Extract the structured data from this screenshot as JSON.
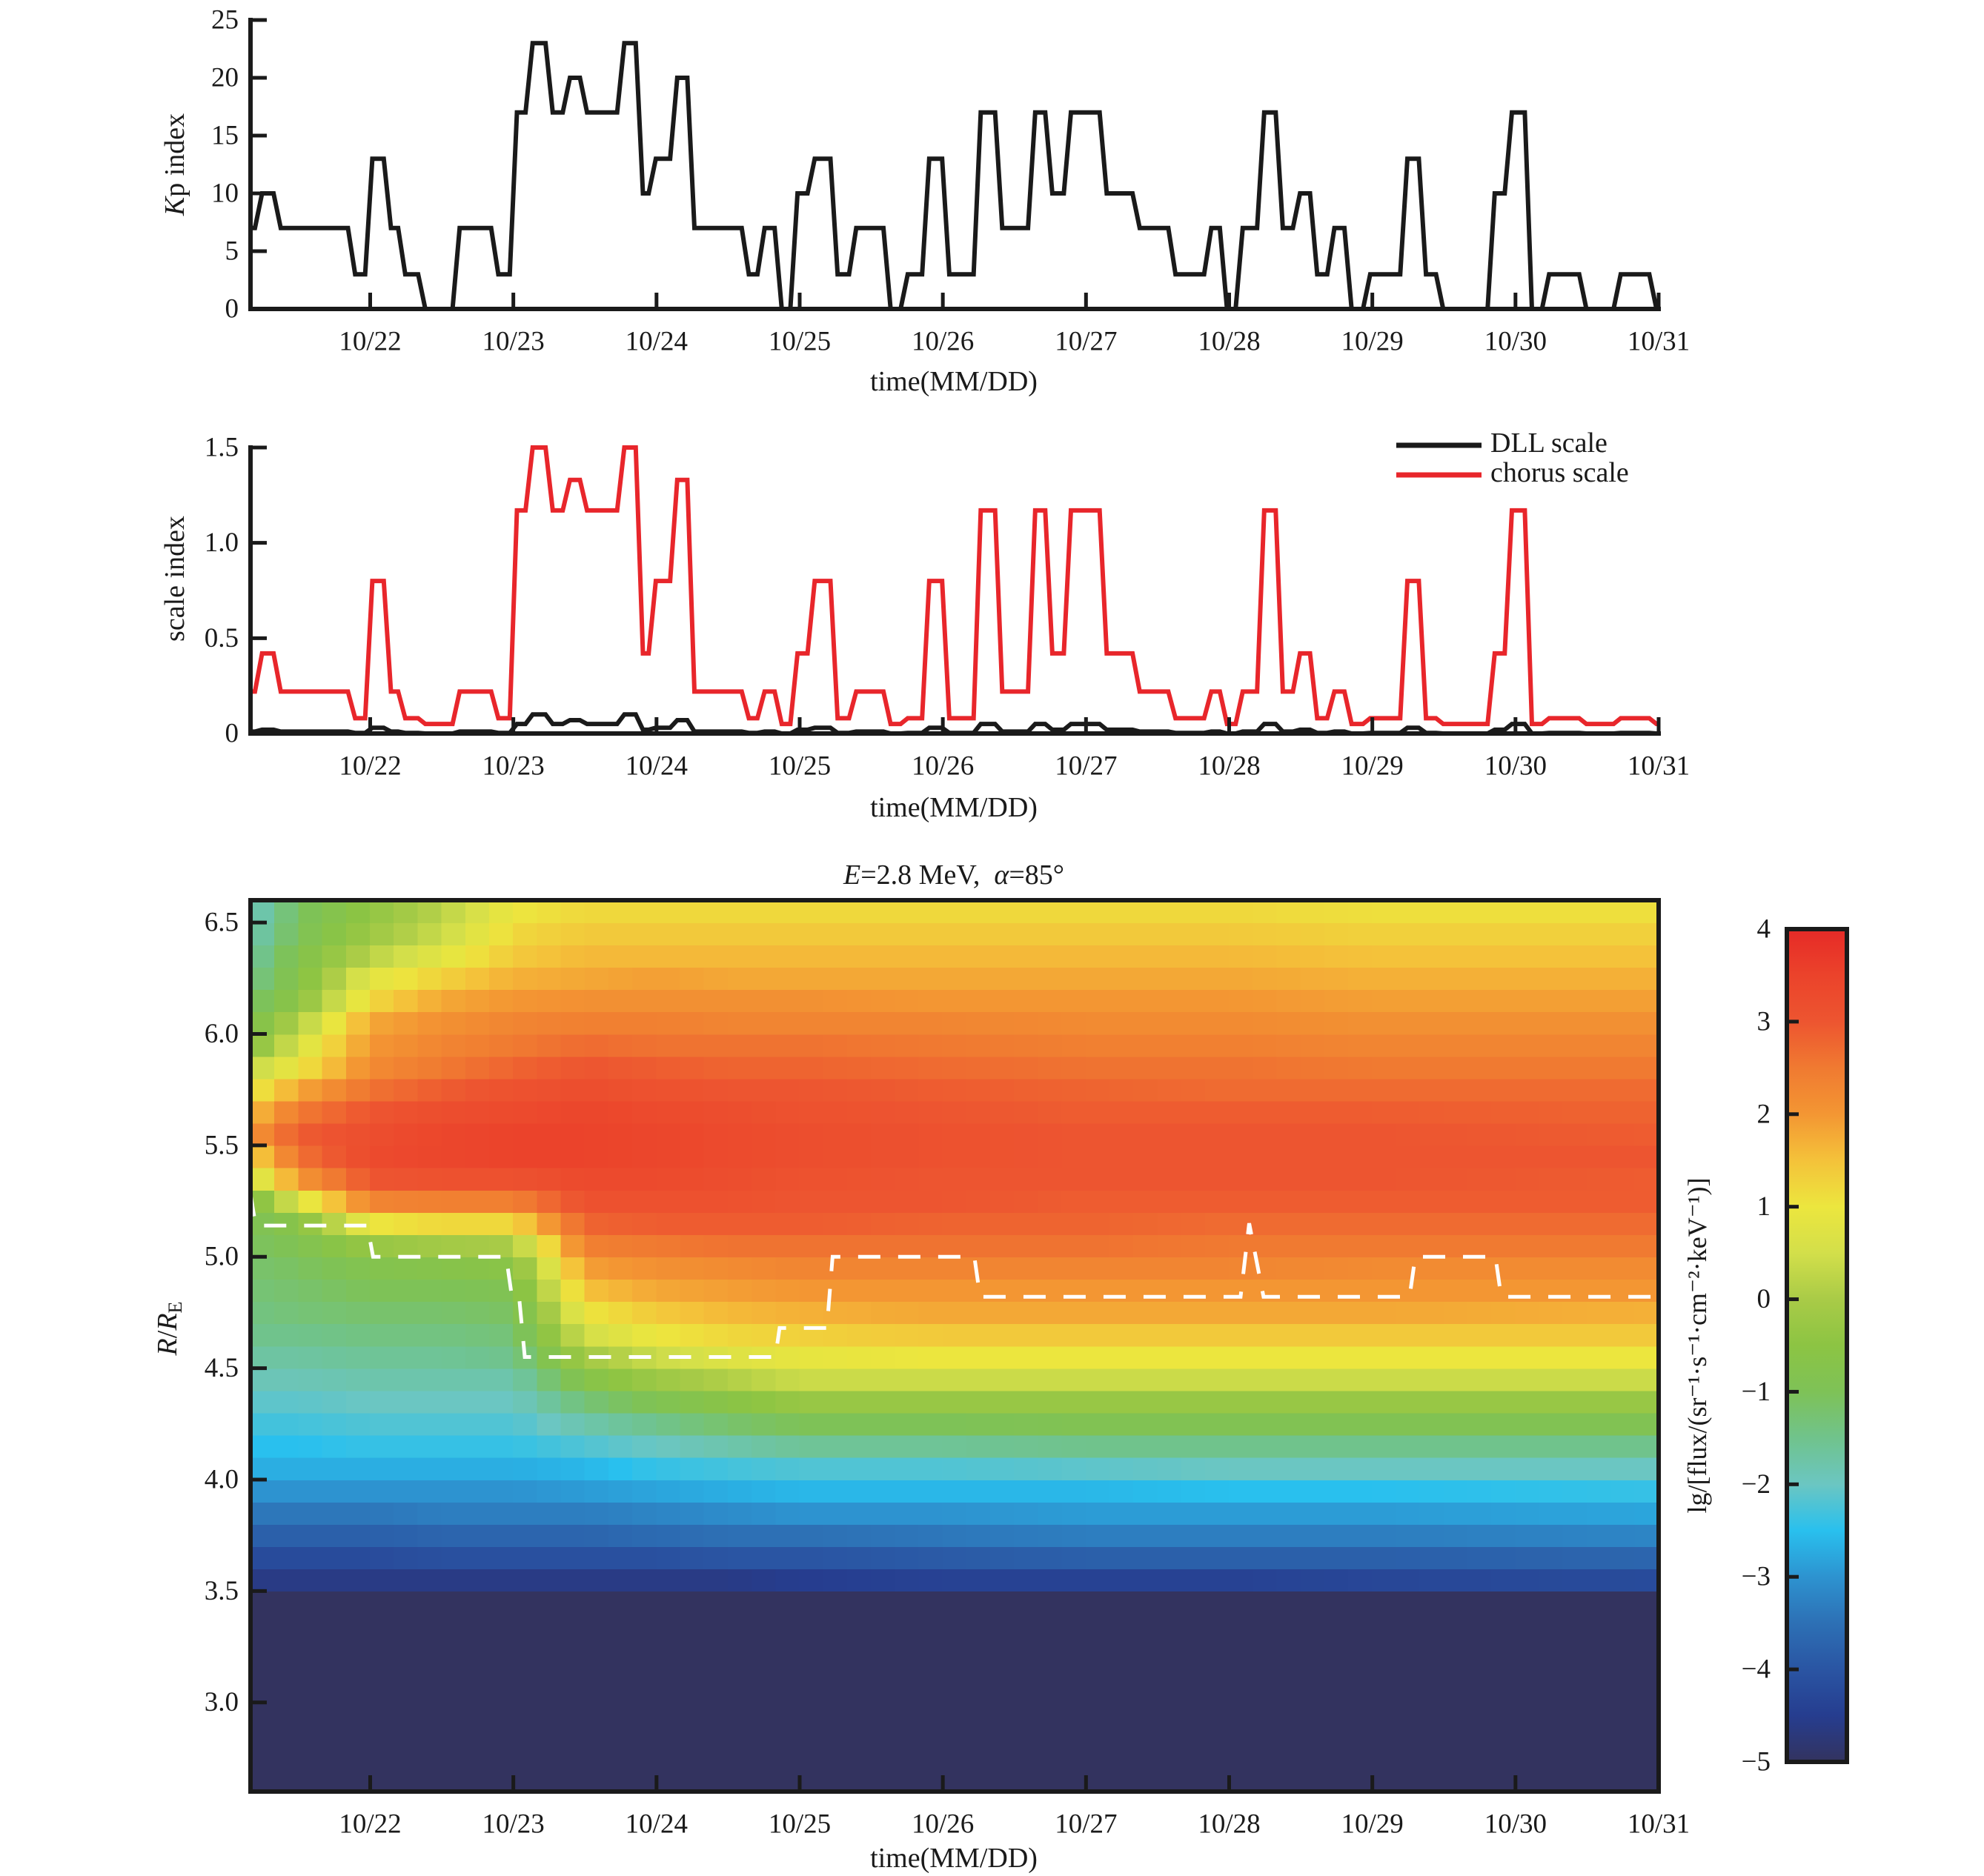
{
  "chart_data": [
    {
      "type": "line",
      "xlabel": "time(MM/DD)",
      "ylabel_parts": [
        "K",
        "p index"
      ],
      "xlim": [
        -0.836,
        9.0
      ],
      "ylim": [
        0,
        25
      ],
      "x_ticks": [
        0,
        1,
        2,
        3,
        4,
        5,
        6,
        7,
        8,
        9
      ],
      "x_tick_labels": [
        "10/22",
        "10/23",
        "10/24",
        "10/25",
        "10/26",
        "10/27",
        "10/28",
        "10/29",
        "10/30",
        "10/31"
      ],
      "y_ticks": [
        0,
        5,
        10,
        15,
        20,
        25
      ],
      "y_tick_labels": [
        "0",
        "5",
        "10",
        "15",
        "20",
        "25"
      ],
      "grid": false,
      "t": [
        -0.836,
        -0.78,
        -0.65,
        -0.13,
        -0.01,
        0.12,
        0.22,
        0.36,
        0.6,
        0.87,
        1.0,
        1.11,
        1.25,
        1.37,
        1.49,
        1.75,
        1.88,
        1.97,
        2.12,
        2.24,
        2.62,
        2.73,
        2.85,
        2.96,
        3.08,
        3.24,
        3.37,
        3.61,
        3.73,
        3.88,
        4.02,
        4.24,
        4.39,
        4.62,
        4.74,
        4.87,
        5.12,
        5.35,
        5.6,
        5.85,
        5.96,
        6.07,
        6.22,
        6.35,
        6.47,
        6.59,
        6.71,
        6.83,
        6.96,
        7.22,
        7.35,
        7.47,
        7.83,
        7.95,
        8.09,
        8.21,
        8.47,
        8.71,
        8.96
      ],
      "series": [
        {
          "key": "kp",
          "color": "#1a1a1a",
          "values": [
            7,
            10,
            7,
            3,
            13,
            7,
            3,
            0,
            7,
            3,
            17,
            23,
            17,
            20,
            17,
            23,
            10,
            13,
            20,
            7,
            3,
            7,
            0,
            10,
            13,
            3,
            7,
            0,
            3,
            13,
            3,
            17,
            7,
            17,
            10,
            17,
            10,
            7,
            3,
            7,
            0,
            7,
            17,
            7,
            10,
            3,
            7,
            0,
            3,
            13,
            3,
            0,
            10,
            17,
            0,
            3,
            0,
            3,
            0
          ]
        }
      ]
    },
    {
      "type": "line",
      "xlabel": "time(MM/DD)",
      "ylabel": "scale index",
      "xlim": [
        -0.836,
        9.0
      ],
      "ylim": [
        0,
        1.5
      ],
      "x_ticks": [
        0,
        1,
        2,
        3,
        4,
        5,
        6,
        7,
        8,
        9
      ],
      "x_tick_labels": [
        "10/22",
        "10/23",
        "10/24",
        "10/25",
        "10/26",
        "10/27",
        "10/28",
        "10/29",
        "10/30",
        "10/31"
      ],
      "y_ticks": [
        0,
        0.5,
        1.0,
        1.5
      ],
      "y_tick_labels": [
        "0",
        "0.5",
        "1.0",
        "1.5"
      ],
      "grid": false,
      "legend_position": "top-right",
      "t": [
        -0.836,
        -0.78,
        -0.65,
        -0.13,
        -0.01,
        0.12,
        0.22,
        0.36,
        0.6,
        0.87,
        1.0,
        1.11,
        1.25,
        1.37,
        1.49,
        1.75,
        1.88,
        1.97,
        2.12,
        2.24,
        2.62,
        2.73,
        2.85,
        2.96,
        3.08,
        3.24,
        3.37,
        3.61,
        3.73,
        3.88,
        4.02,
        4.24,
        4.39,
        4.62,
        4.74,
        4.87,
        5.12,
        5.35,
        5.6,
        5.85,
        5.96,
        6.07,
        6.22,
        6.35,
        6.47,
        6.59,
        6.71,
        6.83,
        6.96,
        7.22,
        7.35,
        7.47,
        7.83,
        7.95,
        8.09,
        8.21,
        8.47,
        8.71,
        8.96
      ],
      "series": [
        {
          "key": "dll",
          "name": "DLL scale",
          "color": "#1a1a1a",
          "values": [
            0.01,
            0.02,
            0.01,
            0.003,
            0.03,
            0.01,
            0.003,
            0,
            0.01,
            0.003,
            0.05,
            0.1,
            0.05,
            0.07,
            0.05,
            0.1,
            0.02,
            0.03,
            0.07,
            0.01,
            0.003,
            0.01,
            0,
            0.02,
            0.03,
            0.003,
            0.01,
            0,
            0.003,
            0.03,
            0.003,
            0.05,
            0.01,
            0.05,
            0.02,
            0.05,
            0.02,
            0.01,
            0.003,
            0.01,
            0,
            0.01,
            0.05,
            0.01,
            0.02,
            0.003,
            0.01,
            0,
            0.003,
            0.03,
            0.003,
            0,
            0.02,
            0.05,
            0,
            0.003,
            0,
            0.003,
            0
          ]
        },
        {
          "key": "chorus",
          "name": "chorus scale",
          "color": "#e8262b",
          "values": [
            0.22,
            0.42,
            0.22,
            0.08,
            0.8,
            0.22,
            0.08,
            0.05,
            0.22,
            0.08,
            1.17,
            1.5,
            1.17,
            1.33,
            1.17,
            1.5,
            0.42,
            0.8,
            1.33,
            0.22,
            0.08,
            0.22,
            0.05,
            0.42,
            0.8,
            0.08,
            0.22,
            0.05,
            0.08,
            0.8,
            0.08,
            1.17,
            0.22,
            1.17,
            0.42,
            1.17,
            0.42,
            0.22,
            0.08,
            0.22,
            0.05,
            0.22,
            1.17,
            0.22,
            0.42,
            0.08,
            0.22,
            0.05,
            0.08,
            0.8,
            0.08,
            0.05,
            0.42,
            1.17,
            0.05,
            0.08,
            0.05,
            0.08,
            0.05
          ]
        }
      ]
    },
    {
      "type": "heatmap",
      "title_parts": [
        "E",
        "=2.8 MeV,  ",
        "α",
        "=85°"
      ],
      "xlabel": "time(MM/DD)",
      "ylabel_parts": [
        "R",
        "/",
        "R",
        "E"
      ],
      "xlim": [
        -0.836,
        9.0
      ],
      "ylim": [
        2.6,
        6.6
      ],
      "x_ticks": [
        0,
        1,
        2,
        3,
        4,
        5,
        6,
        7,
        8,
        9
      ],
      "x_tick_labels": [
        "10/22",
        "10/23",
        "10/24",
        "10/25",
        "10/26",
        "10/27",
        "10/28",
        "10/29",
        "10/30",
        "10/31"
      ],
      "y_ticks": [
        3.0,
        3.5,
        4.0,
        4.5,
        5.0,
        5.5,
        6.0,
        6.5
      ],
      "y_tick_labels": [
        "3.0",
        "3.5",
        "4.0",
        "4.5",
        "5.0",
        "5.5",
        "6.0",
        "6.5"
      ],
      "cell_dt_days": 0.16667,
      "cell_dL": 0.1,
      "value_below_grid": -5,
      "L": [
        3.5,
        3.6,
        3.7,
        3.8,
        3.9,
        4.0,
        4.1,
        4.2,
        4.3,
        4.4,
        4.5,
        4.6,
        4.7,
        4.8,
        4.9,
        5.0,
        5.1,
        5.2,
        5.3,
        5.4,
        5.5,
        5.6,
        5.7,
        5.8,
        5.9,
        6.0,
        6.1,
        6.2,
        6.3,
        6.4,
        6.5,
        6.6
      ],
      "profile_times": [
        -0.836,
        -0.5,
        0.0,
        0.5,
        1.0,
        1.5,
        2.0,
        2.5,
        3.0,
        4.0,
        5.0,
        6.0,
        7.0,
        9.0
      ],
      "profiles": [
        [
          -5,
          -4.6,
          -4.2,
          -3.8,
          -3.4,
          -3.0,
          -2.7,
          -2.5,
          -2.3,
          -2.1,
          -1.9,
          -1.7,
          -1.5,
          -1.4,
          -1.3,
          -1.2,
          -1.1,
          -1.0,
          -0.8,
          0.4,
          1.2,
          2.0,
          1.5,
          0.9,
          0.3,
          -0.6,
          -0.9,
          -1.2,
          -1.5,
          -1.7,
          -1.9,
          -2.0
        ],
        [
          -5,
          -4.6,
          -4.2,
          -3.8,
          -3.4,
          -3.0,
          -2.7,
          -2.5,
          -2.3,
          -2.1,
          -1.9,
          -1.7,
          -1.5,
          -1.3,
          -1.2,
          -1.1,
          -0.9,
          -0.6,
          0.7,
          2.0,
          2.6,
          2.9,
          2.5,
          1.8,
          1.0,
          0.6,
          0.1,
          -0.5,
          -0.7,
          -0.8,
          -1.0,
          -1.1
        ],
        [
          -5,
          -4.6,
          -4.2,
          -3.8,
          -3.4,
          -3.0,
          -2.7,
          -2.4,
          -2.2,
          -2.0,
          -1.8,
          -1.6,
          -1.4,
          -1.2,
          -1.0,
          -0.8,
          -0.3,
          1.0,
          2.3,
          3.0,
          3.3,
          3.2,
          3.0,
          2.6,
          2.2,
          2.0,
          1.8,
          1.2,
          0.8,
          0.2,
          -0.2,
          -0.4
        ],
        [
          -5,
          -4.6,
          -4.1,
          -3.7,
          -3.3,
          -3.0,
          -2.7,
          -2.4,
          -2.2,
          -2.0,
          -1.8,
          -1.6,
          -1.4,
          -1.2,
          -1.0,
          -0.7,
          -0.1,
          1.2,
          2.4,
          3.1,
          3.4,
          3.4,
          3.2,
          2.9,
          2.5,
          2.3,
          2.1,
          1.8,
          1.3,
          0.8,
          0.4,
          0.2
        ],
        [
          -5,
          -4.6,
          -4.1,
          -3.7,
          -3.3,
          -3.0,
          -2.7,
          -2.4,
          -2.2,
          -2.0,
          -1.8,
          -1.5,
          -1.3,
          -1.1,
          -0.9,
          -0.6,
          0.0,
          1.2,
          2.4,
          3.1,
          3.5,
          3.5,
          3.3,
          3.1,
          2.8,
          2.5,
          2.3,
          2.0,
          1.7,
          1.4,
          1.2,
          1.0
        ],
        [
          -5,
          -4.6,
          -4.1,
          -3.7,
          -3.3,
          -2.9,
          -2.6,
          -2.2,
          -1.8,
          -1.3,
          -0.7,
          -0.1,
          0.5,
          1.0,
          1.5,
          1.9,
          2.4,
          2.8,
          3.1,
          3.3,
          3.5,
          3.5,
          3.4,
          3.2,
          3.0,
          2.7,
          2.4,
          2.1,
          1.8,
          1.6,
          1.4,
          1.2
        ],
        [
          -5,
          -4.6,
          -4.1,
          -3.6,
          -3.2,
          -2.8,
          -2.4,
          -2.0,
          -1.5,
          -0.9,
          -0.2,
          0.4,
          1.0,
          1.4,
          1.8,
          2.1,
          2.5,
          2.9,
          3.1,
          3.3,
          3.4,
          3.4,
          3.3,
          3.1,
          2.9,
          2.6,
          2.4,
          2.1,
          1.9,
          1.6,
          1.4,
          1.2
        ],
        [
          -5,
          -4.6,
          -4.0,
          -3.5,
          -3.1,
          -2.7,
          -2.3,
          -1.8,
          -1.2,
          -0.6,
          0.1,
          0.7,
          1.2,
          1.6,
          1.9,
          2.2,
          2.6,
          2.9,
          3.1,
          3.2,
          3.3,
          3.3,
          3.2,
          3.0,
          2.8,
          2.6,
          2.3,
          2.1,
          1.8,
          1.6,
          1.4,
          1.2
        ],
        [
          -5,
          -4.5,
          -4.0,
          -3.5,
          -3.0,
          -2.6,
          -2.2,
          -1.6,
          -1.0,
          -0.3,
          0.4,
          0.9,
          1.3,
          1.7,
          2.0,
          2.3,
          2.6,
          2.9,
          3.0,
          3.1,
          3.2,
          3.2,
          3.1,
          3.0,
          2.8,
          2.6,
          2.3,
          2.1,
          1.8,
          1.6,
          1.4,
          1.2
        ],
        [
          -5,
          -4.4,
          -3.9,
          -3.4,
          -3.0,
          -2.6,
          -2.2,
          -1.6,
          -1.0,
          -0.3,
          0.4,
          1.0,
          1.4,
          1.8,
          2.0,
          2.3,
          2.6,
          2.8,
          3.0,
          3.0,
          3.1,
          3.1,
          3.0,
          2.9,
          2.7,
          2.5,
          2.3,
          2.0,
          1.8,
          1.6,
          1.4,
          1.2
        ],
        [
          -5,
          -4.4,
          -3.8,
          -3.3,
          -2.9,
          -2.6,
          -2.1,
          -1.5,
          -0.9,
          -0.3,
          0.4,
          1.0,
          1.4,
          1.8,
          2.0,
          2.3,
          2.6,
          2.8,
          2.9,
          3.0,
          3.0,
          3.0,
          2.9,
          2.8,
          2.6,
          2.4,
          2.2,
          2.0,
          1.8,
          1.6,
          1.4,
          1.2
        ],
        [
          -5,
          -4.4,
          -3.8,
          -3.3,
          -2.9,
          -2.5,
          -2.0,
          -1.5,
          -0.9,
          -0.3,
          0.4,
          1.0,
          1.4,
          1.8,
          2.0,
          2.3,
          2.5,
          2.7,
          2.9,
          3.0,
          3.0,
          3.0,
          2.9,
          2.7,
          2.6,
          2.4,
          2.2,
          2.0,
          1.8,
          1.6,
          1.4,
          1.2
        ],
        [
          -5,
          -4.3,
          -3.8,
          -3.3,
          -2.9,
          -2.5,
          -2.0,
          -1.5,
          -0.9,
          -0.3,
          0.4,
          1.0,
          1.4,
          1.8,
          2.0,
          2.2,
          2.5,
          2.7,
          2.9,
          3.0,
          3.0,
          3.0,
          2.9,
          2.7,
          2.5,
          2.3,
          2.1,
          1.9,
          1.7,
          1.5,
          1.3,
          1.1
        ],
        [
          -5,
          -4.2,
          -3.7,
          -3.2,
          -2.8,
          -2.4,
          -2.0,
          -1.5,
          -0.9,
          -0.3,
          0.4,
          1.0,
          1.4,
          1.7,
          2.0,
          2.2,
          2.5,
          2.7,
          2.9,
          2.9,
          3.0,
          2.9,
          2.8,
          2.7,
          2.5,
          2.3,
          2.1,
          1.9,
          1.7,
          1.5,
          1.3,
          1.1
        ]
      ],
      "boundary": {
        "style": "white dashed",
        "t": [
          -0.836,
          -0.8,
          -0.02,
          0.02,
          0.95,
          0.99,
          1.04,
          1.08,
          2.83,
          2.86,
          3.19,
          3.23,
          4.22,
          4.26,
          6.08,
          6.14,
          6.24,
          7.26,
          7.3,
          7.86,
          7.9,
          9.0
        ],
        "L": [
          5.28,
          5.14,
          5.14,
          5.0,
          5.0,
          4.82,
          4.82,
          4.55,
          4.55,
          4.68,
          4.68,
          5.0,
          5.0,
          4.82,
          4.82,
          5.15,
          4.82,
          4.82,
          5.0,
          5.0,
          4.82,
          4.82
        ]
      },
      "colorbar": {
        "label": "lg/[flux/(sr⁻¹·s⁻¹·cm⁻²·keV⁻¹)]",
        "clim": [
          -5,
          4
        ],
        "ticks": [
          -5,
          -4,
          -3,
          -2,
          -1,
          0,
          1,
          2,
          3,
          4
        ],
        "tick_labels": [
          "−5",
          "−4",
          "−3",
          "−2",
          "−1",
          "0",
          "1",
          "2",
          "3",
          "4"
        ]
      },
      "colormap": [
        [
          -5,
          "#33335f"
        ],
        [
          -4.5,
          "#263d8f"
        ],
        [
          -4,
          "#2a55a3"
        ],
        [
          -3.5,
          "#2d70b5"
        ],
        [
          -3,
          "#2d93d0"
        ],
        [
          -2.5,
          "#29c0ee"
        ],
        [
          -2,
          "#6bc6c2"
        ],
        [
          -1.5,
          "#70c38c"
        ],
        [
          -1,
          "#7ec257"
        ],
        [
          -0.5,
          "#8cc443"
        ],
        [
          0,
          "#a9cb47"
        ],
        [
          0.5,
          "#d3df4a"
        ],
        [
          1,
          "#ece63e"
        ],
        [
          1.5,
          "#f4c23a"
        ],
        [
          2,
          "#f39633"
        ],
        [
          2.5,
          "#f07a31"
        ],
        [
          3,
          "#ed5530"
        ],
        [
          3.5,
          "#eb432b"
        ],
        [
          4,
          "#e62a27"
        ]
      ]
    }
  ]
}
